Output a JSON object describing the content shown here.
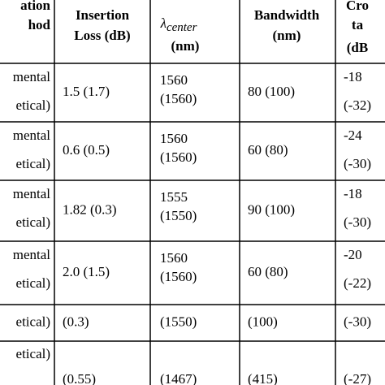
{
  "table": {
    "header": [
      {
        "lines": [
          "ation",
          "hod"
        ]
      },
      {
        "lines": [
          "Insertion",
          "Loss (dB)"
        ]
      },
      {
        "symbol": "λ",
        "subscript": "center",
        "lines": [
          "(nm)"
        ]
      },
      {
        "lines": [
          "Bandwidth",
          "(nm)"
        ]
      },
      {
        "lines": [
          "Cro",
          "ta",
          "(dB"
        ]
      }
    ],
    "rows": [
      [
        [
          "mental",
          "etical)"
        ],
        [
          "1.5 (1.7)"
        ],
        [
          "1560",
          "(1560)"
        ],
        [
          "80 (100)"
        ],
        [
          "-18",
          "(-32)"
        ]
      ],
      [
        [
          "mental",
          "etical)"
        ],
        [
          "0.6 (0.5)"
        ],
        [
          "1560",
          "(1560)"
        ],
        [
          "60 (80)"
        ],
        [
          "-24",
          "(-30)"
        ]
      ],
      [
        [
          "mental",
          "etical)"
        ],
        [
          "1.82 (0.3)"
        ],
        [
          "1555",
          "(1550)"
        ],
        [
          "90 (100)"
        ],
        [
          "-18",
          "(-30)"
        ]
      ],
      [
        [
          "mental",
          "etical)"
        ],
        [
          "2.0 (1.5)"
        ],
        [
          "1560",
          "(1560)"
        ],
        [
          "60 (80)"
        ],
        [
          "-20",
          "(-22)"
        ]
      ],
      [
        [
          "etical)"
        ],
        [
          "(0.3)"
        ],
        [
          "(1550)"
        ],
        [
          "(100)"
        ],
        [
          "(-30)"
        ]
      ],
      [
        [
          "etical)"
        ],
        [
          "(0.55)"
        ],
        [
          "(1467)"
        ],
        [
          "(415)"
        ],
        [
          "(-27)"
        ]
      ]
    ]
  }
}
